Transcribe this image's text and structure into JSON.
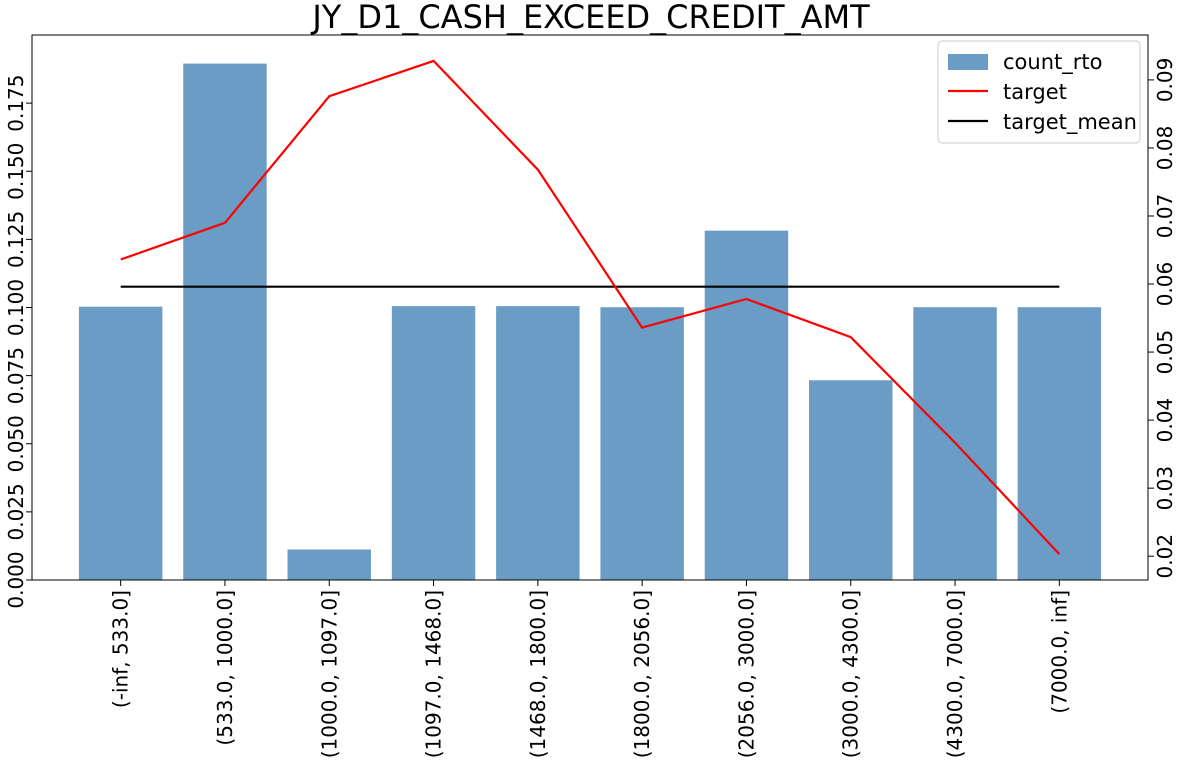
{
  "chart_data": {
    "type": "bar",
    "title": "JY_D1_CASH_EXCEED_CREDIT_AMT",
    "xlabel": "",
    "ylabel": "",
    "categories": [
      "(-inf, 533.0]",
      "(533.0, 1000.0]",
      "(1000.0, 1097.0]",
      "(1097.0, 1468.0]",
      "(1468.0, 1800.0]",
      "(1800.0, 2056.0]",
      "(2056.0, 3000.0]",
      "(3000.0, 4300.0]",
      "(4300.0, 7000.0]",
      "(7000.0, inf]"
    ],
    "left_axis": {
      "ylim": [
        0,
        0.2
      ],
      "ticks": [
        "0.000",
        "0.025",
        "0.050",
        "0.075",
        "0.100",
        "0.125",
        "0.150",
        "0.175"
      ]
    },
    "right_axis": {
      "ylim": [
        0.0165,
        0.0966
      ],
      "ticks": [
        "0.02",
        "0.03",
        "0.04",
        "0.05",
        "0.06",
        "0.07",
        "0.08",
        "0.09"
      ]
    },
    "series": [
      {
        "name": "count_rto",
        "kind": "bar",
        "axis": "left",
        "color": "#6a9cc6",
        "values": [
          0.1003,
          0.1895,
          0.0112,
          0.1005,
          0.1005,
          0.1001,
          0.1282,
          0.0733,
          0.1001,
          0.1001
        ]
      },
      {
        "name": "target",
        "kind": "line",
        "axis": "right",
        "color": "#ff0000",
        "values": [
          0.0636,
          0.069,
          0.0876,
          0.0928,
          0.0768,
          0.0536,
          0.0578,
          0.0522,
          0.0367,
          0.0203
        ]
      },
      {
        "name": "target_mean",
        "kind": "line",
        "axis": "right",
        "color": "#000000",
        "values": [
          0.0596,
          0.0596,
          0.0596,
          0.0596,
          0.0596,
          0.0596,
          0.0596,
          0.0596,
          0.0596,
          0.0596
        ]
      }
    ],
    "legend": {
      "position": "top-right"
    },
    "grid": false
  }
}
